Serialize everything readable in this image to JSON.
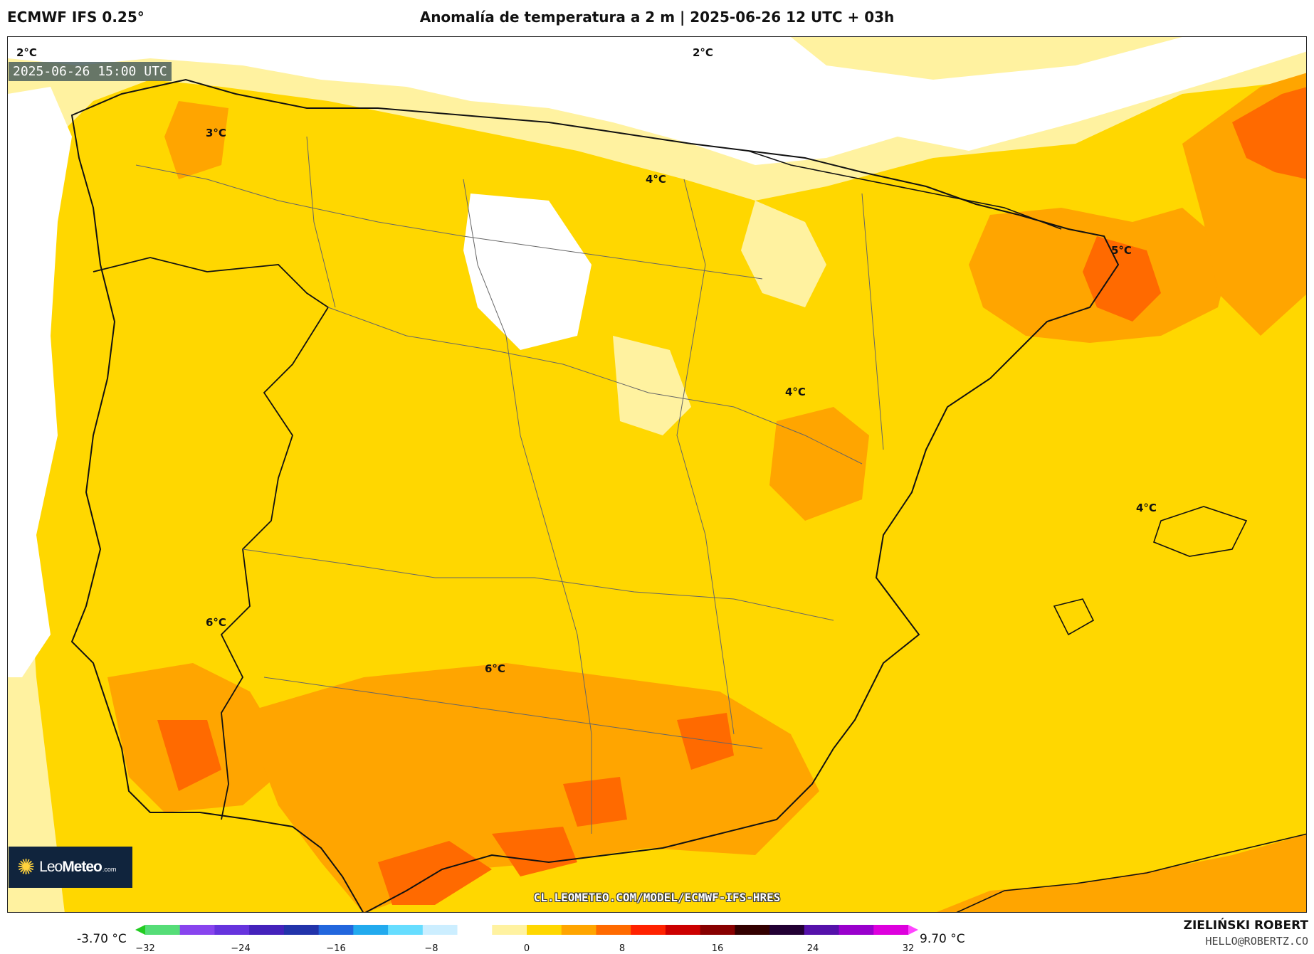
{
  "header": {
    "model": "ECMWF IFS 0.25°",
    "title": "Anomalía de temperatura a 2 m | 2025-06-26 12 UTC + 03h"
  },
  "map": {
    "valid_time": "2025-06-26 15:00 UTC",
    "source_url": "CL.LEOMETEO.COM/MODEL/ECMWF-IFS-HRES",
    "contour_labels": [
      {
        "text": "2°C",
        "area": "Bay of Biscay (west)"
      },
      {
        "text": "2°C",
        "area": "Bay of Biscay (east)"
      },
      {
        "text": "3°C",
        "area": "Galicia"
      },
      {
        "text": "4°C",
        "area": "Castilla y León / Burgos"
      },
      {
        "text": "5°C",
        "area": "Catalonia"
      },
      {
        "text": "4°C",
        "area": "Valencia interior"
      },
      {
        "text": "4°C",
        "area": "Balearic Sea"
      },
      {
        "text": "6°C",
        "area": "Alentejo"
      },
      {
        "text": "6°C",
        "area": "Andalusia"
      }
    ]
  },
  "logo": {
    "icon": "sun-icon",
    "brand_light": "Leo",
    "brand_bold": "Meteo",
    "domain": ".com"
  },
  "colorbar": {
    "min_label": "-3.70 °C",
    "max_label": "9.70 °C",
    "ticks": [
      "−32",
      "−24",
      "−16",
      "−8",
      "0",
      "8",
      "16",
      "24",
      "32"
    ],
    "colors": [
      "#22cc22",
      "#55dd77",
      "#8844ee",
      "#6633dd",
      "#4422bb",
      "#2233aa",
      "#2266dd",
      "#22aaee",
      "#66ddff",
      "#cceeff",
      "#ffffff",
      "#fff2a0",
      "#ffd700",
      "#ffa500",
      "#ff6a00",
      "#ff2200",
      "#cc0000",
      "#880000",
      "#330000",
      "#220033",
      "#5511aa",
      "#9900cc",
      "#dd00dd",
      "#ff44ff"
    ]
  },
  "credit": {
    "author": "ZIELIŃSKI ROBERT",
    "email": "HELLO@ROBERTZ.CO"
  }
}
